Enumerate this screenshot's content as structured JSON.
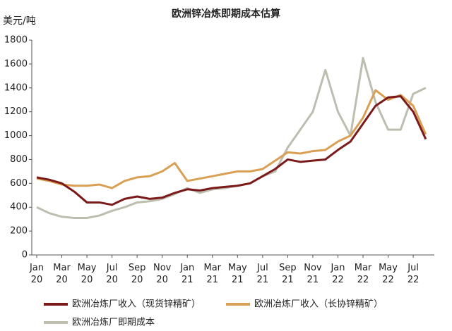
{
  "chart_data": {
    "type": "line",
    "title": "欧洲锌冶炼即期成本估算",
    "y_label": "美元/吨",
    "categories": [
      "Jan\n20",
      null,
      "Mar\n20",
      null,
      "May\n20",
      null,
      "Jul\n20",
      null,
      "Sep\n20",
      null,
      "Nov\n20",
      null,
      "Jan\n21",
      null,
      "Mar\n21",
      null,
      "May\n21",
      null,
      "Jul\n21",
      null,
      "Sep\n21",
      null,
      "Nov\n21",
      null,
      "Jan\n22",
      null,
      "Mar\n22",
      null,
      "May\n22",
      null,
      "Jul\n22",
      null
    ],
    "series": [
      {
        "name": "欧洲冶炼厂收入（现货锌精矿）",
        "color": "#7b1a1a",
        "values": [
          650,
          630,
          600,
          530,
          440,
          440,
          420,
          470,
          490,
          470,
          480,
          520,
          550,
          540,
          560,
          570,
          580,
          600,
          660,
          720,
          800,
          780,
          790,
          800,
          880,
          950,
          1100,
          1250,
          1320,
          1330,
          1200,
          970
        ]
      },
      {
        "name": "欧洲冶炼厂收入（长协锌精矿）",
        "color": "#d9a055",
        "values": [
          640,
          620,
          590,
          580,
          580,
          590,
          560,
          620,
          650,
          660,
          700,
          770,
          620,
          640,
          660,
          680,
          700,
          700,
          720,
          790,
          860,
          850,
          870,
          880,
          950,
          1000,
          1150,
          1380,
          1300,
          1340,
          1250,
          1010
        ]
      },
      {
        "name": "欧洲冶炼厂即期成本",
        "color": "#bdbdb0",
        "values": [
          400,
          350,
          320,
          310,
          310,
          330,
          370,
          400,
          440,
          450,
          470,
          510,
          560,
          520,
          550,
          560,
          580,
          600,
          660,
          700,
          900,
          1050,
          1200,
          1550,
          1200,
          1000,
          1650,
          1280,
          1050,
          1050,
          1350,
          1400
        ]
      }
    ],
    "ylim": [
      0,
      1800
    ],
    "yticks": [
      0,
      200,
      400,
      600,
      800,
      1000,
      1200,
      1400,
      1600,
      1800
    ],
    "grid": false
  }
}
